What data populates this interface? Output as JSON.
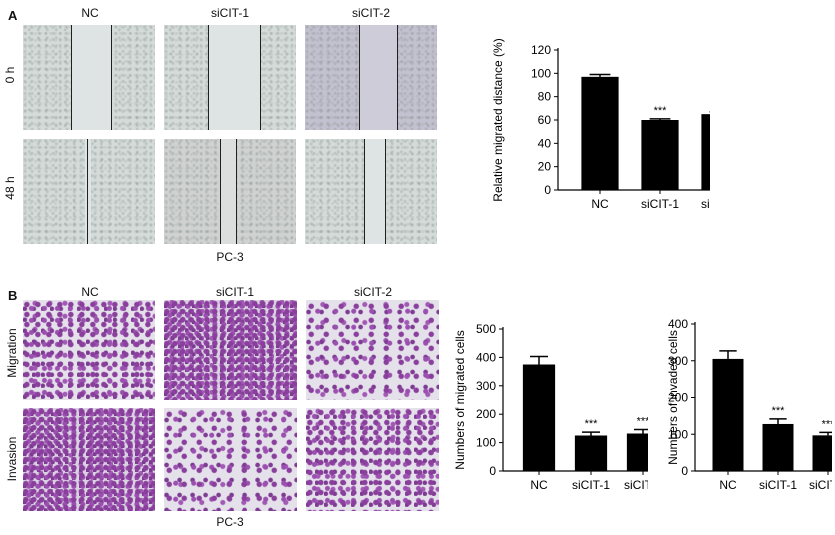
{
  "panel_a": {
    "letter": "A",
    "columns": [
      "NC",
      "siCIT-1",
      "siCIT-2"
    ],
    "rows": [
      "0 h",
      "48 h"
    ],
    "caption": "PC-3"
  },
  "panel_b": {
    "letter": "B",
    "columns": [
      "NC",
      "siCIT-1",
      "siCIT-2"
    ],
    "rows": [
      "Migration",
      "Invasion"
    ],
    "caption": "PC-3"
  },
  "chart_data": [
    {
      "type": "bar",
      "categories": [
        "NC",
        "siCIT-1",
        "siCIT-2"
      ],
      "values": [
        97,
        60,
        65
      ],
      "errors": [
        2,
        1,
        2
      ],
      "annotations": [
        "",
        "***",
        "***"
      ],
      "title": "",
      "xlabel": "",
      "ylabel": "Relative migrated distance (%)",
      "ylim": [
        0,
        120
      ],
      "yticks": [
        0,
        20,
        40,
        60,
        80,
        100,
        120
      ],
      "bar_color": "#000000"
    },
    {
      "type": "bar",
      "categories": [
        "NC",
        "siCIT-1",
        "siCIT-2"
      ],
      "values": [
        375,
        125,
        132
      ],
      "errors": [
        28,
        12,
        14
      ],
      "annotations": [
        "",
        "***",
        "***"
      ],
      "title": "",
      "xlabel": "",
      "ylabel": "Numbers of migrated cells",
      "ylim": [
        0,
        500
      ],
      "yticks": [
        0,
        100,
        200,
        300,
        400,
        500
      ],
      "bar_color": "#000000"
    },
    {
      "type": "bar",
      "categories": [
        "NC",
        "siCIT-1",
        "siCIT-2"
      ],
      "values": [
        305,
        128,
        97
      ],
      "errors": [
        22,
        14,
        8
      ],
      "annotations": [
        "",
        "***",
        "***"
      ],
      "title": "",
      "xlabel": "",
      "ylabel": "Numbers of invaded cells",
      "ylim": [
        0,
        400
      ],
      "yticks": [
        0,
        100,
        200,
        300,
        400
      ],
      "bar_color": "#000000"
    }
  ]
}
